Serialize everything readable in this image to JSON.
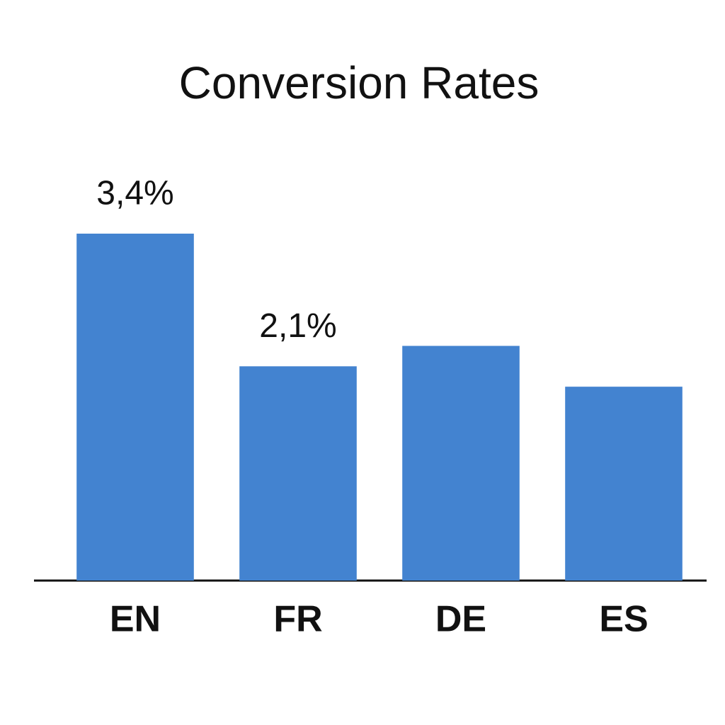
{
  "chart_data": {
    "type": "bar",
    "title": "Conversion Rates",
    "categories": [
      "EN",
      "FR",
      "DE",
      "ES"
    ],
    "values": [
      3.4,
      2.1,
      2.3,
      1.9
    ],
    "value_labels": [
      "3,4%",
      "2,1%",
      null,
      null
    ],
    "color": "#4383d0"
  }
}
